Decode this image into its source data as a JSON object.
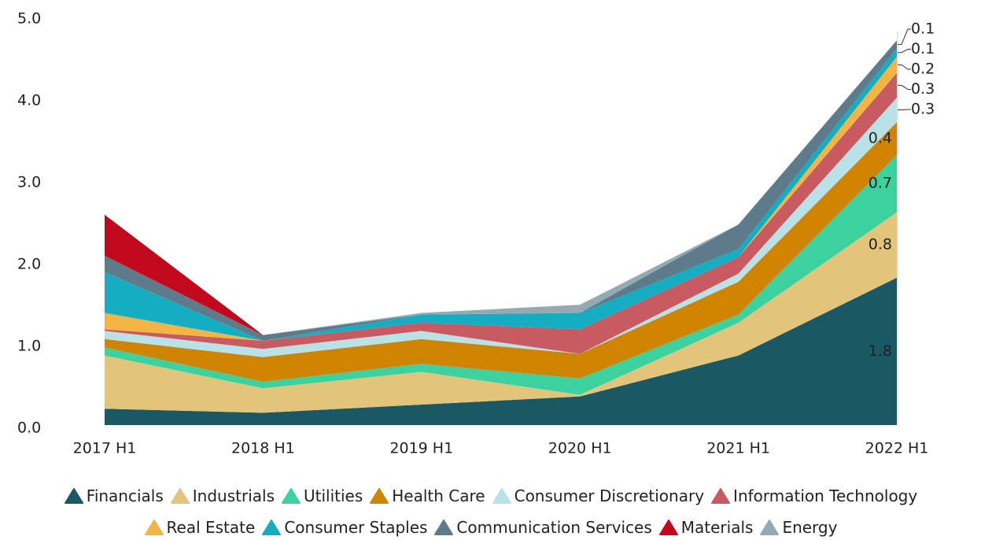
{
  "chart_data": {
    "type": "stacked_area",
    "categories": [
      "2017 H1",
      "2018 H1",
      "2019 H1",
      "2020 H1",
      "2021 H1",
      "2022 H1"
    ],
    "ylim": [
      0,
      5
    ],
    "yticks": [
      {
        "value": 0,
        "label": "0.0"
      },
      {
        "value": 1,
        "label": "1.0"
      },
      {
        "value": 2,
        "label": "2.0"
      },
      {
        "value": 3,
        "label": "3.0"
      },
      {
        "value": 4,
        "label": "4.0"
      },
      {
        "value": 5,
        "label": "5.0"
      }
    ],
    "series": [
      {
        "name": "Financials",
        "color": "#1b5866",
        "values": [
          0.2,
          0.15,
          0.25,
          0.35,
          0.85,
          1.8
        ]
      },
      {
        "name": "Industrials",
        "color": "#e2c47a",
        "values": [
          0.65,
          0.3,
          0.4,
          0.02,
          0.4,
          0.8
        ]
      },
      {
        "name": "Utilities",
        "color": "#3dd1a0",
        "values": [
          0.1,
          0.08,
          0.1,
          0.2,
          0.1,
          0.7
        ]
      },
      {
        "name": "Health Care",
        "color": "#cf8400",
        "values": [
          0.1,
          0.3,
          0.3,
          0.3,
          0.4,
          0.4
        ]
      },
      {
        "name": "Consumer Discretionary",
        "color": "#b8e2e6",
        "values": [
          0.1,
          0.1,
          0.1,
          0,
          0.1,
          0.3
        ]
      },
      {
        "name": "Information Technology",
        "color": "#c85a62",
        "values": [
          0.02,
          0.1,
          0.1,
          0.3,
          0.2,
          0.3
        ]
      },
      {
        "name": "Real Estate",
        "color": "#f2b444",
        "values": [
          0.2,
          0,
          0,
          0,
          0,
          0.2
        ]
      },
      {
        "name": "Consumer Staples",
        "color": "#14adc2",
        "values": [
          0.5,
          0,
          0.1,
          0.2,
          0.1,
          0.1
        ]
      },
      {
        "name": "Communication Services",
        "color": "#5e7b8b",
        "values": [
          0.2,
          0.07,
          0,
          0,
          0.3,
          0.1
        ]
      },
      {
        "name": "Materials",
        "color": "#c2081c",
        "values": [
          0.5,
          0,
          0,
          0,
          0,
          0
        ]
      },
      {
        "name": "Energy",
        "color": "#94aab2",
        "values": [
          0,
          0,
          0.02,
          0.1,
          0,
          0
        ]
      }
    ]
  }
}
